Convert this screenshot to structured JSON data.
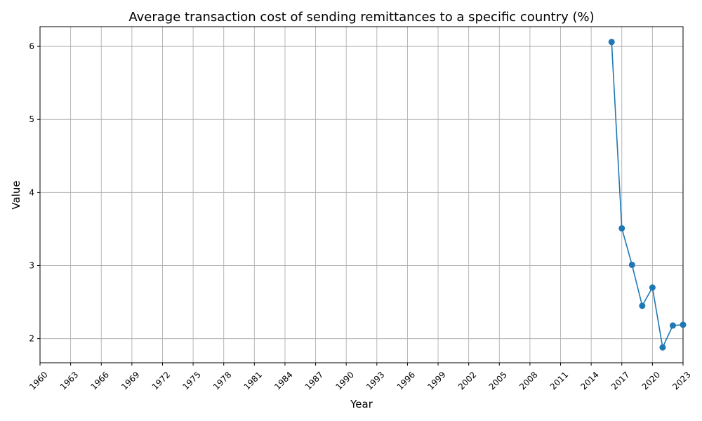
{
  "chart_data": {
    "type": "line",
    "title": "Average transaction cost of sending remittances to a specific country (%)",
    "xlabel": "Year",
    "ylabel": "Value",
    "xlim": [
      1960,
      2023
    ],
    "ylim": [
      1.67,
      6.27
    ],
    "x_ticks": [
      1960,
      1963,
      1966,
      1969,
      1972,
      1975,
      1978,
      1981,
      1984,
      1987,
      1990,
      1993,
      1996,
      1999,
      2002,
      2005,
      2008,
      2011,
      2014,
      2017,
      2020,
      2023
    ],
    "y_ticks": [
      2,
      3,
      4,
      5,
      6
    ],
    "grid": true,
    "series": [
      {
        "color": "#1f77b4",
        "x": [
          2016,
          2017,
          2018,
          2019,
          2020,
          2021,
          2022,
          2023
        ],
        "values": [
          6.06,
          3.51,
          3.01,
          2.45,
          2.7,
          1.88,
          2.18,
          2.19
        ]
      }
    ]
  }
}
